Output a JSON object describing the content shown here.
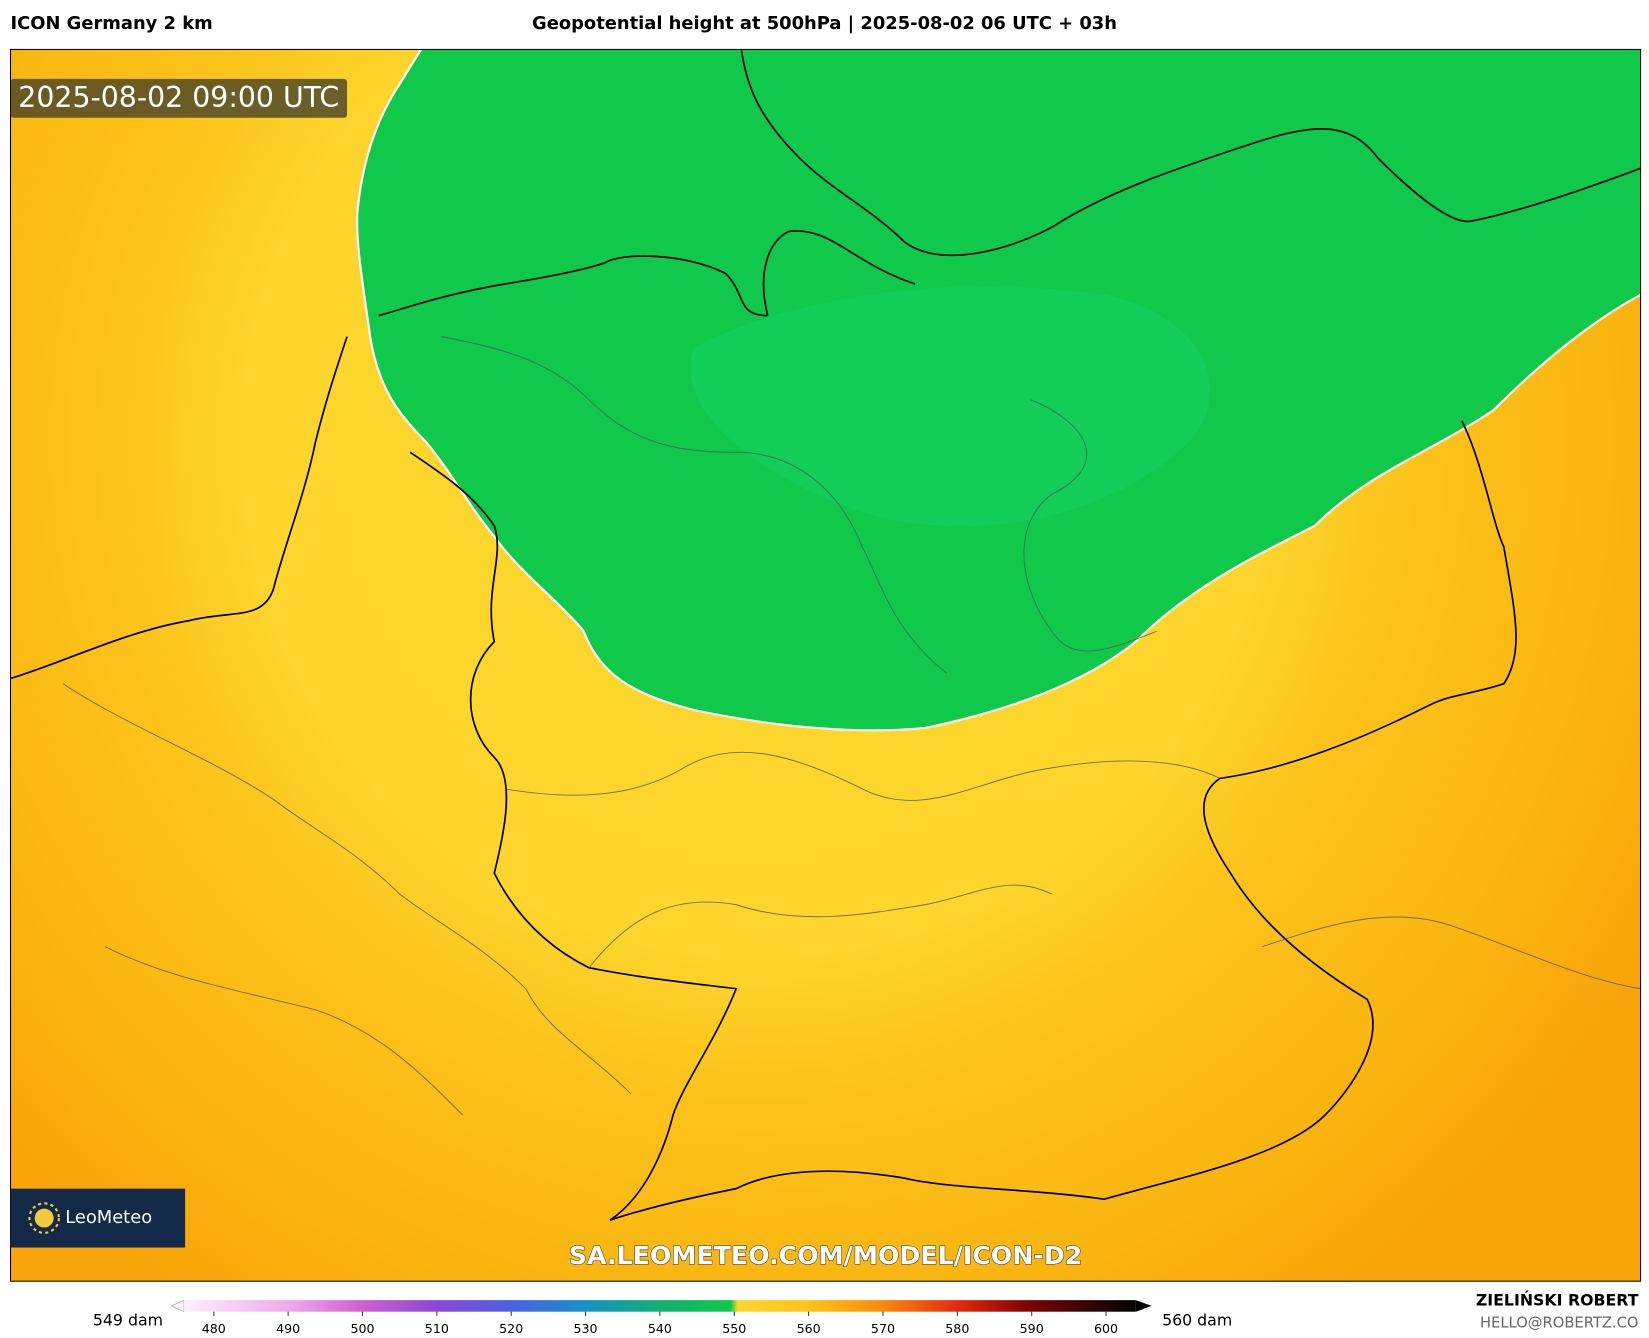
{
  "header": {
    "model": "ICON Germany 2 km",
    "title": "Geopotential height at 500hPa | 2025-08-02 06 UTC + 03h"
  },
  "map": {
    "timestamp": "2025-08-02 09:00 UTC",
    "logo": "LeoMeteo",
    "watermark": "SA.LEOMETEO.COM/MODEL/ICON-D2"
  },
  "legend": {
    "left_label": "549 dam",
    "right_label": "560 dam",
    "lim": [
      476,
      604
    ],
    "ticks": [
      480,
      490,
      500,
      510,
      520,
      530,
      540,
      550,
      560,
      570,
      580,
      590,
      600
    ],
    "stops": [
      {
        "value": 476,
        "color": "#fdf0fd"
      },
      {
        "value": 490,
        "color": "#eeaaee"
      },
      {
        "value": 500,
        "color": "#d060d0"
      },
      {
        "value": 510,
        "color": "#8a48d8"
      },
      {
        "value": 520,
        "color": "#4a62e0"
      },
      {
        "value": 530,
        "color": "#1890c8"
      },
      {
        "value": 540,
        "color": "#10b070"
      },
      {
        "value": 549.5,
        "color": "#10c84a"
      },
      {
        "value": 550.5,
        "color": "#fdd62e"
      },
      {
        "value": 560,
        "color": "#fcc418"
      },
      {
        "value": 570,
        "color": "#f98a0c"
      },
      {
        "value": 580,
        "color": "#e42a10"
      },
      {
        "value": 590,
        "color": "#7a0000"
      },
      {
        "value": 604,
        "color": "#000000"
      }
    ]
  },
  "footer": {
    "author": "ZIELIŃSKI ROBERT",
    "email": "HELLO@ROBERTZ.CO"
  }
}
